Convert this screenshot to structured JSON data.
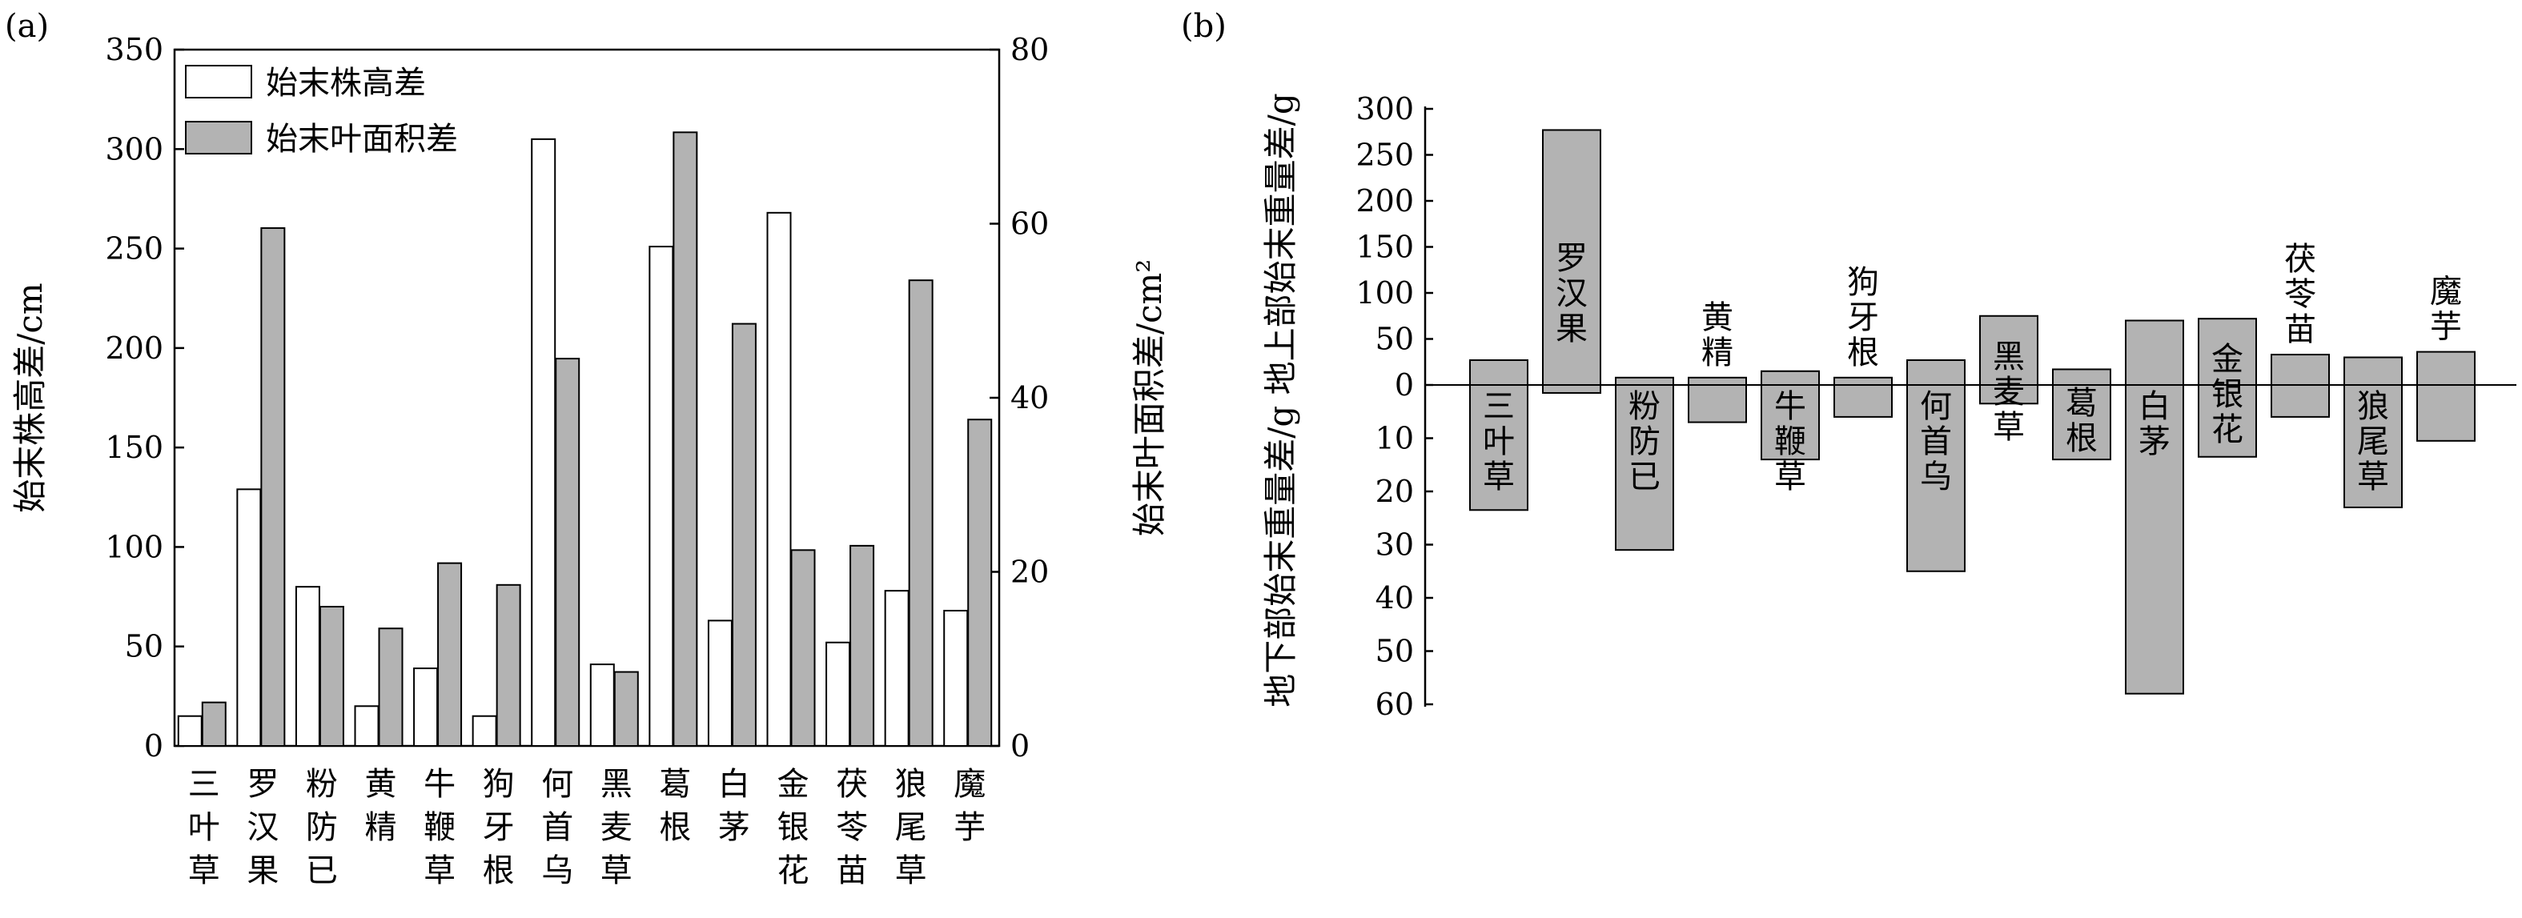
{
  "chart_data": [
    {
      "panel_label": "(a)",
      "type": "bar",
      "categories": [
        "三叶草",
        "罗汉果",
        "粉防已",
        "黄精",
        "牛鞭草",
        "狗牙根",
        "何首乌",
        "黑麦草",
        "葛根",
        "白茅",
        "金银花",
        "茯苓苗",
        "狼尾草",
        "魔芋"
      ],
      "series": [
        {
          "name": "始末株高差",
          "axis": "left",
          "color": "#ffffff",
          "values": [
            15,
            129,
            80,
            20,
            39,
            15,
            305,
            41,
            251,
            63,
            268,
            52,
            78,
            68
          ]
        },
        {
          "name": "始末叶面积差",
          "axis": "right",
          "color": "#b3b3b3",
          "values": [
            5,
            59.5,
            16,
            13.5,
            21,
            18.5,
            44.5,
            8.5,
            70.5,
            48.5,
            22.5,
            23,
            53.5,
            37.5
          ]
        }
      ],
      "ylabel": "始末株高差/cm",
      "ylabel_right": "始末叶面积差/cm²",
      "ylim": [
        0,
        350
      ],
      "yticks": [
        "0",
        "50",
        "100",
        "150",
        "200",
        "250",
        "300",
        "350"
      ],
      "ylim_right": [
        0,
        80
      ],
      "yticks_right": [
        "0",
        "20",
        "40",
        "60",
        "80"
      ],
      "legend_position": "top-left",
      "grid": false
    },
    {
      "panel_label": "(b)",
      "type": "bar",
      "categories": [
        "三叶草",
        "罗汉果",
        "粉防已",
        "黄精",
        "牛鞭草",
        "狗牙根",
        "何首乌",
        "黑麦草",
        "葛根",
        "白茅",
        "金银花",
        "茯苓苗",
        "狼尾草",
        "魔芋"
      ],
      "series": [
        {
          "name": "地上部始末重量差",
          "color": "#b3b3b3",
          "values": [
            27,
            277,
            8,
            8,
            15,
            8,
            27,
            75,
            17,
            70,
            72,
            33,
            30,
            36
          ]
        },
        {
          "name": "地下部始末重量差",
          "color": "#b3b3b3",
          "values": [
            23.5,
            1.5,
            31,
            7,
            14,
            6,
            35,
            3.5,
            14,
            58,
            13.5,
            6,
            23,
            10.5
          ]
        }
      ],
      "ylabel": "地下部始末重量差/g  地上部始末重量差/g",
      "yticks_upper": [
        "300",
        "250",
        "200",
        "150",
        "100",
        "50",
        "0"
      ],
      "yticks_lower": [
        "10",
        "20",
        "30",
        "40",
        "50",
        "60"
      ],
      "ylim_upper": [
        0,
        300
      ],
      "ylim_lower": [
        0,
        60
      ],
      "grid": false
    }
  ]
}
